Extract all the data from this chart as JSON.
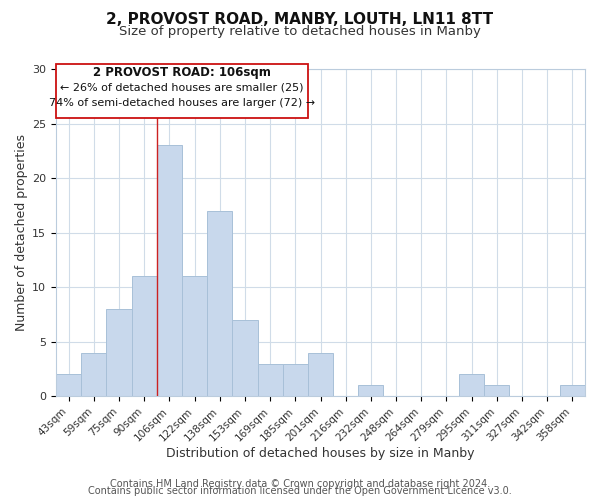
{
  "title": "2, PROVOST ROAD, MANBY, LOUTH, LN11 8TT",
  "subtitle": "Size of property relative to detached houses in Manby",
  "xlabel": "Distribution of detached houses by size in Manby",
  "ylabel": "Number of detached properties",
  "categories": [
    "43sqm",
    "59sqm",
    "75sqm",
    "90sqm",
    "106sqm",
    "122sqm",
    "138sqm",
    "153sqm",
    "169sqm",
    "185sqm",
    "201sqm",
    "216sqm",
    "232sqm",
    "248sqm",
    "264sqm",
    "279sqm",
    "295sqm",
    "311sqm",
    "327sqm",
    "342sqm",
    "358sqm"
  ],
  "values": [
    2,
    4,
    8,
    11,
    23,
    11,
    17,
    7,
    3,
    3,
    4,
    0,
    1,
    0,
    0,
    0,
    2,
    1,
    0,
    0,
    1
  ],
  "highlight_index": 4,
  "bar_color": "#c8d8ec",
  "bar_edge_color": "#a8c0d8",
  "highlight_line_color": "#cc2222",
  "ylim": [
    0,
    30
  ],
  "yticks": [
    0,
    5,
    10,
    15,
    20,
    25,
    30
  ],
  "annotation_text_line1": "2 PROVOST ROAD: 106sqm",
  "annotation_text_line2": "← 26% of detached houses are smaller (25)",
  "annotation_text_line3": "74% of semi-detached houses are larger (72) →",
  "footer_line1": "Contains HM Land Registry data © Crown copyright and database right 2024.",
  "footer_line2": "Contains public sector information licensed under the Open Government Licence v3.0.",
  "background_color": "#ffffff",
  "grid_color": "#d0dce8",
  "title_fontsize": 11,
  "subtitle_fontsize": 9.5,
  "axis_label_fontsize": 9,
  "tick_fontsize": 7.5,
  "footer_fontsize": 7
}
